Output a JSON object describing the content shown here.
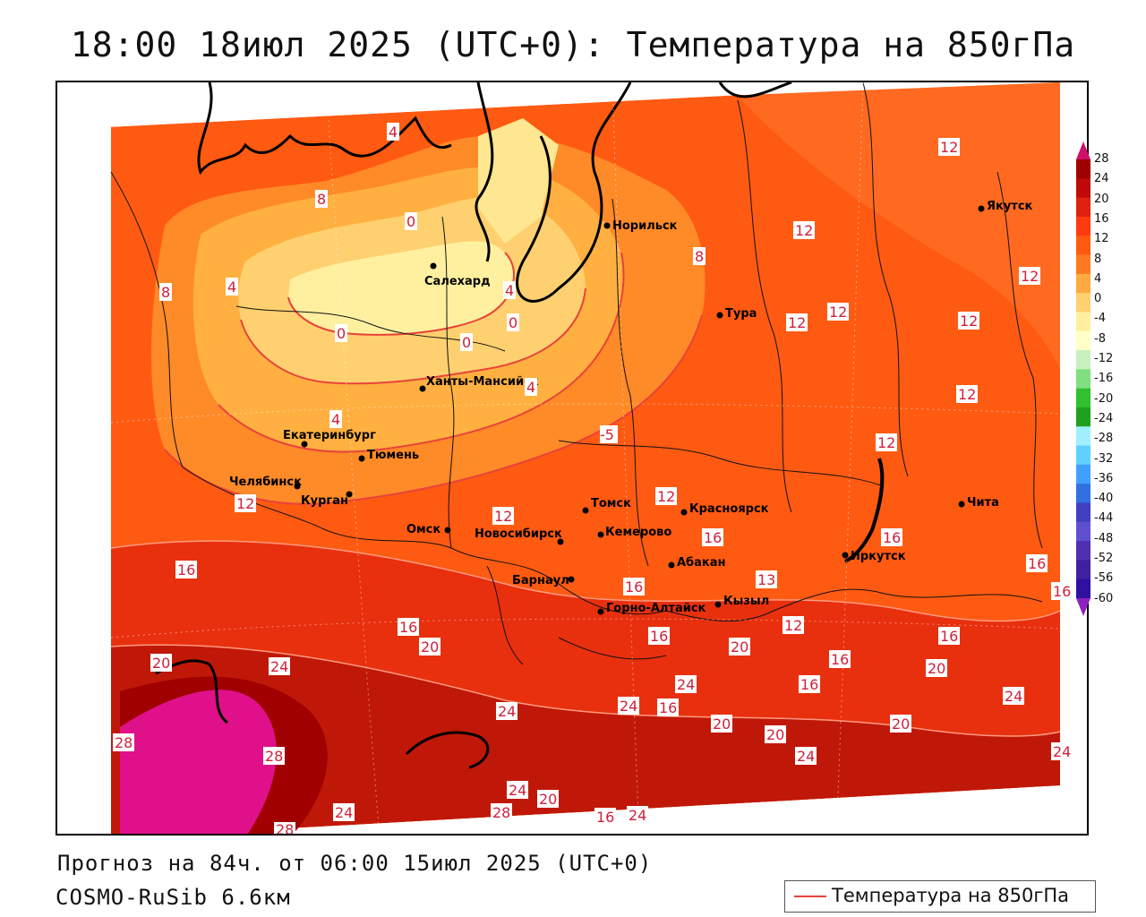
{
  "title": "18:00 18июл 2025 (UTC+0): Температура на 850гПа",
  "footer": {
    "forecast": "Прогноз на 84ч. от 06:00 15июл 2025 (UTC+0)",
    "model": "COSMO-RuSib 6.6км"
  },
  "legend": {
    "label": "Температура на 850гПа",
    "line_color": "#e8433a"
  },
  "colorbar": {
    "ticks": [
      "28",
      "24",
      "20",
      "16",
      "12",
      "8",
      "4",
      "0",
      "-4",
      "-8",
      "-12",
      "-16",
      "-20",
      "-24",
      "-28",
      "-32",
      "-36",
      "-40",
      "-44",
      "-48",
      "-52",
      "-56",
      "-60"
    ],
    "colors": [
      "#a00000",
      "#c00a0a",
      "#e02010",
      "#ff3a10",
      "#ff5a10",
      "#ff7a20",
      "#ffaa40",
      "#ffd070",
      "#fff0a0",
      "#ffffc8",
      "#c8f0c0",
      "#80e080",
      "#30c030",
      "#20a020",
      "#a0f0ff",
      "#60d0ff",
      "#40a0ff",
      "#3070e0",
      "#4040c0",
      "#6050d0",
      "#5030b0",
      "#4020a0",
      "#3010a0"
    ],
    "top_arrow_color": "#d0106a",
    "bottom_arrow_color": "#9020c0"
  },
  "cities": [
    {
      "name": "Норильск"
    },
    {
      "name": "Якутск"
    },
    {
      "name": "Салехард"
    },
    {
      "name": "Тура"
    },
    {
      "name": "Ханты-Мансийск"
    },
    {
      "name": "Екатеринбург"
    },
    {
      "name": "Тюмень"
    },
    {
      "name": "Челябинск"
    },
    {
      "name": "Курган"
    },
    {
      "name": "Омск"
    },
    {
      "name": "Томск"
    },
    {
      "name": "Красноярск"
    },
    {
      "name": "Новосибирск"
    },
    {
      "name": "Кемерово"
    },
    {
      "name": "Абакан"
    },
    {
      "name": "Барнаул"
    },
    {
      "name": "Кызыл"
    },
    {
      "name": "Горно-Алтайск"
    },
    {
      "name": "Иркутск"
    },
    {
      "name": "Чита"
    }
  ],
  "contour_labels": [
    "4",
    "8",
    "0",
    "4",
    "8",
    "4",
    "4",
    "0",
    "0",
    "0",
    "4",
    "8",
    "12",
    "12",
    "12",
    "12",
    "12",
    "12",
    "12",
    "12",
    "12",
    "12",
    "12",
    "16",
    "16",
    "16",
    "16",
    "16",
    "16",
    "16",
    "16",
    "16",
    "16",
    "16",
    "20",
    "20",
    "20",
    "20",
    "20",
    "20",
    "20",
    "24",
    "24",
    "24",
    "24",
    "24",
    "24",
    "24",
    "24",
    "24",
    "24",
    "28",
    "28",
    "28",
    "28",
    "20",
    "16",
    "16",
    "13",
    "12",
    "-5"
  ]
}
